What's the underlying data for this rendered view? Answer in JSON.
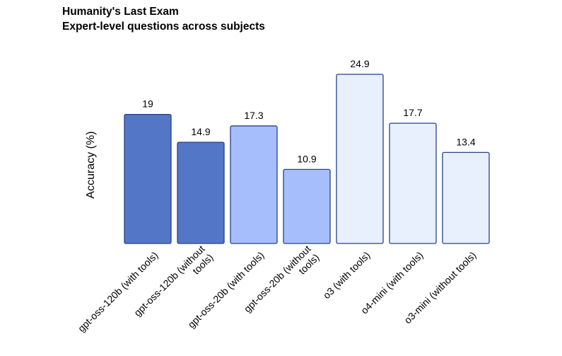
{
  "chart_data": {
    "type": "bar",
    "title": "Humanity's Last Exam",
    "subtitle": "Expert-level questions across subjects",
    "ylabel": "Accuracy (%)",
    "xlabel": "",
    "ylim": [
      0,
      25
    ],
    "grid": false,
    "categories": [
      "gpt-oss-120b (with tools)",
      "gpt-oss-120b (without tools)",
      "gpt-oss-20b (with tools)",
      "gpt-oss-20b (without tools)",
      "o3 (with tools)",
      "o4-mini (with tools)",
      "o3-mini (without tools)"
    ],
    "category_lines": [
      [
        "gpt-oss-120b (with tools)"
      ],
      [
        "gpt-oss-120b (without",
        "tools)"
      ],
      [
        "gpt-oss-20b (with tools)"
      ],
      [
        "gpt-oss-20b (without",
        "tools)"
      ],
      [
        "o3 (with tools)"
      ],
      [
        "o4-mini (with tools)"
      ],
      [
        "o3-mini (without tools)"
      ]
    ],
    "values": [
      19,
      14.9,
      17.3,
      10.9,
      24.9,
      17.7,
      13.4
    ],
    "value_labels": [
      "19",
      "14.9",
      "17.3",
      "10.9",
      "24.9",
      "17.7",
      "13.4"
    ],
    "colors": [
      "#5377c6",
      "#5377c6",
      "#a6bffc",
      "#a6bffc",
      "#e8effd",
      "#e8effd",
      "#e8effd"
    ],
    "edge_color": "#26418a"
  }
}
